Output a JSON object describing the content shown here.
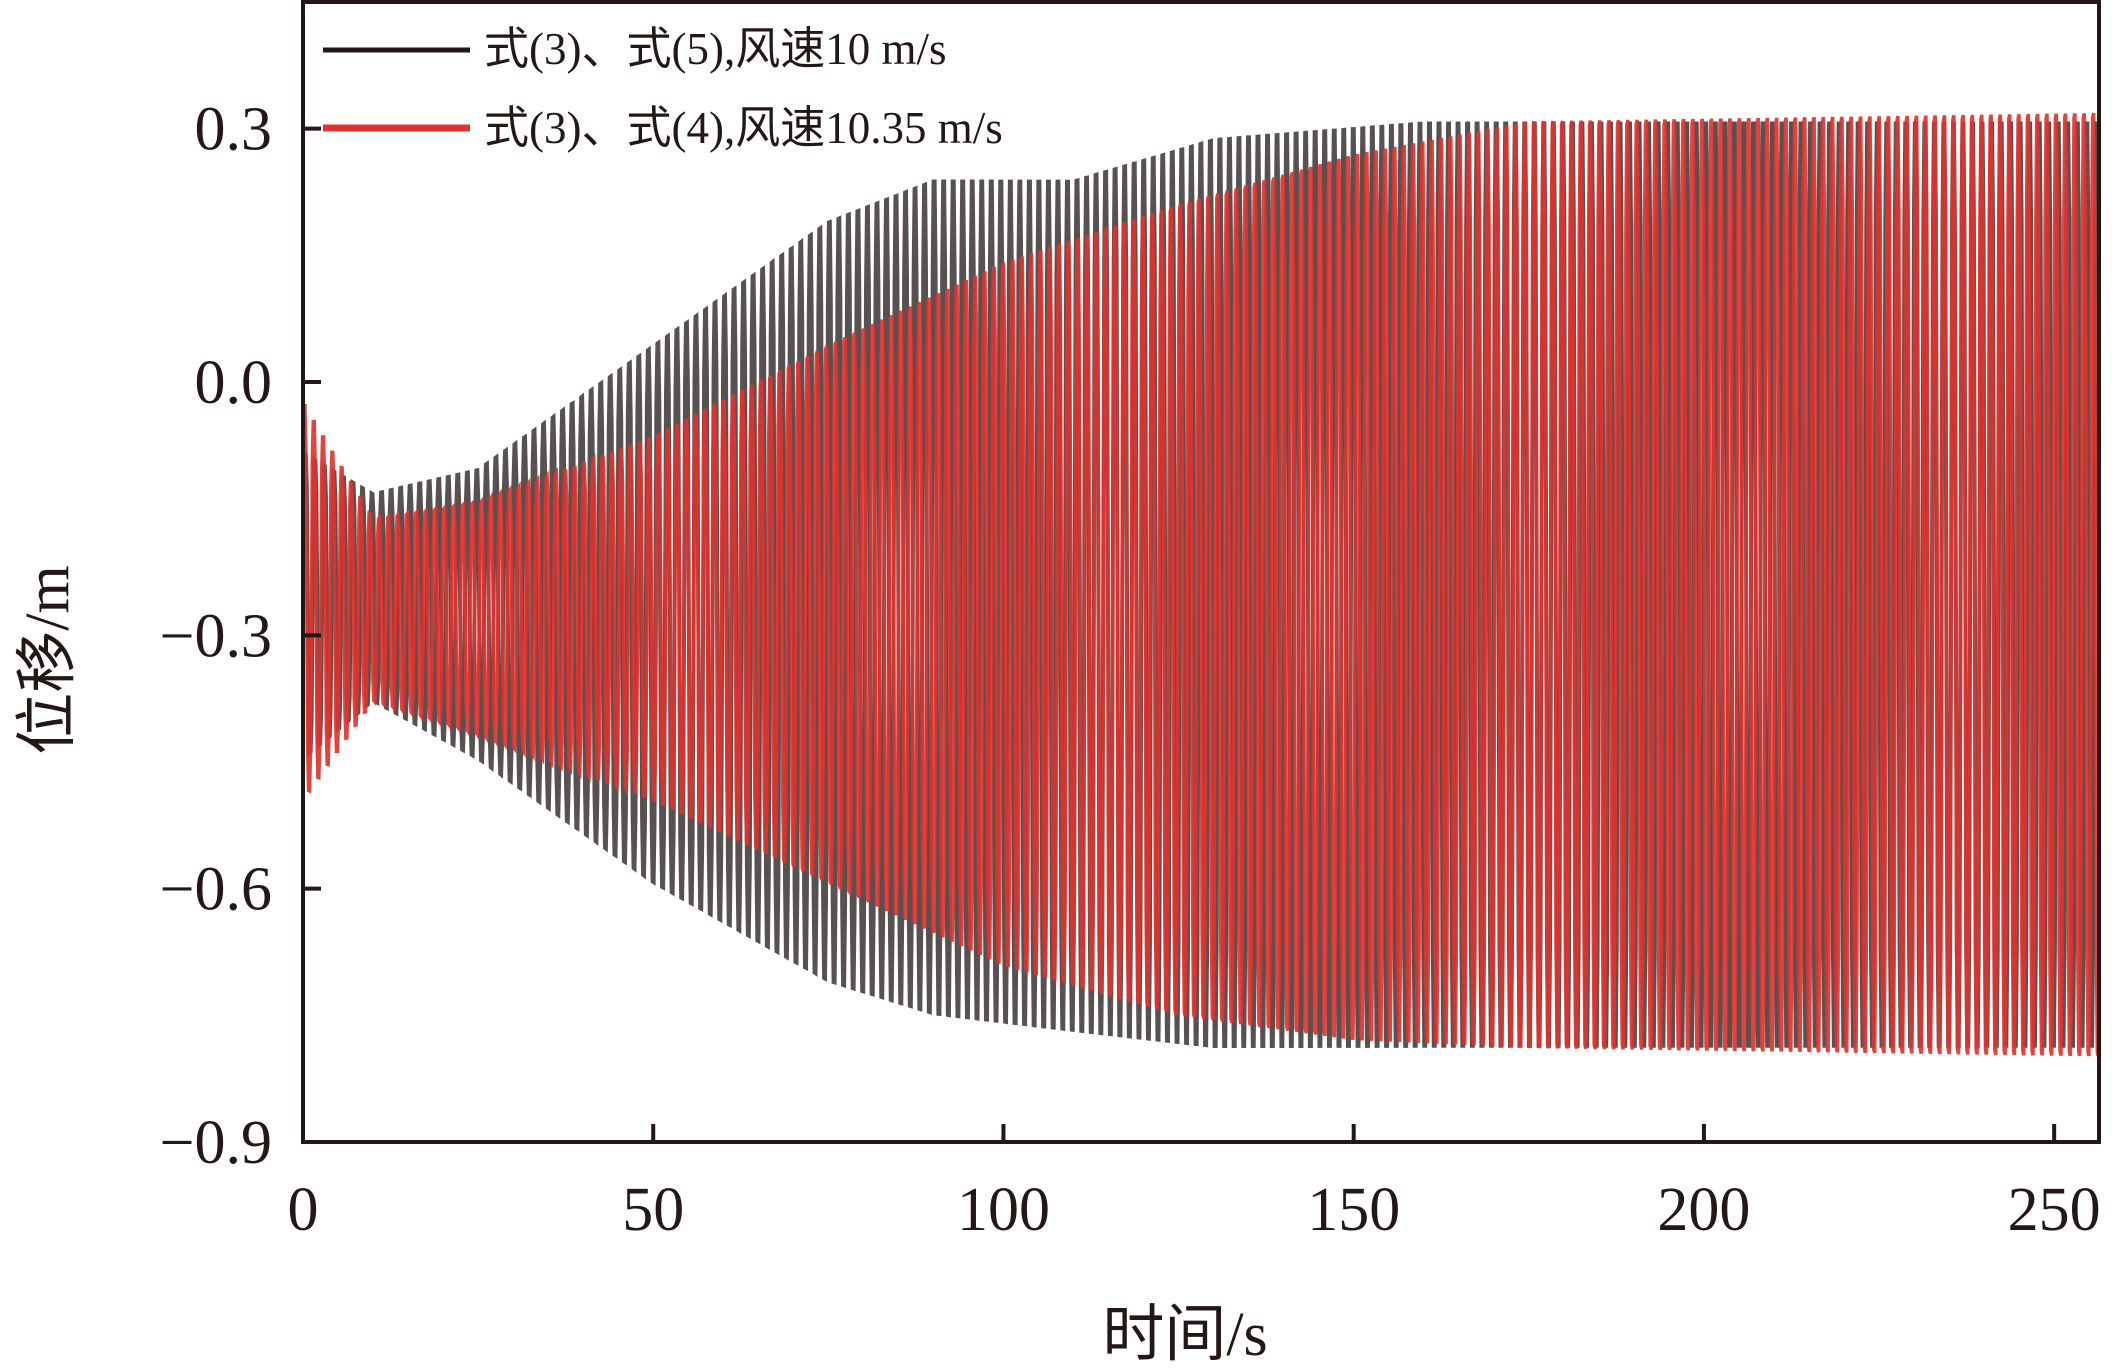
{
  "chart_data": {
    "type": "line",
    "title": "",
    "xlabel": "时间/s",
    "ylabel": "位移/m",
    "xlim": [
      0,
      256.4
    ],
    "ylim": [
      -0.9,
      0.45
    ],
    "xticks": [
      0,
      50,
      100,
      150,
      200,
      250
    ],
    "xtick_labels": [
      "0",
      "50",
      "100",
      "150",
      "200",
      "250"
    ],
    "yticks": [
      0.3,
      0.0,
      -0.3,
      -0.6,
      -0.9
    ],
    "ytick_labels": [
      "0.3",
      "0.0",
      "−0.3",
      "−0.6",
      "−0.9"
    ],
    "grid": false,
    "legend_position": "top-left",
    "series": [
      {
        "name": "式(3)、式(5),风速10 m/s",
        "color": "#3a3333",
        "oscillation_period_s": 1.36,
        "envelope_t": [
          0,
          10,
          25,
          50,
          75,
          90,
          110,
          130,
          160,
          256
        ],
        "envelope_upper": [
          -0.08,
          -0.13,
          -0.1,
          0.05,
          0.2,
          0.25,
          0.25,
          0.3,
          0.32,
          0.32
        ],
        "envelope_lower": [
          -0.45,
          -0.38,
          -0.45,
          -0.6,
          -0.72,
          -0.76,
          -0.78,
          -0.8,
          -0.8,
          -0.8
        ]
      },
      {
        "name": "式(3)、式(4),风速10.35 m/s",
        "color": "#e0332f",
        "oscillation_period_s": 1.33,
        "envelope_t": [
          0,
          10,
          25,
          50,
          75,
          100,
          125,
          150,
          175,
          256
        ],
        "envelope_upper": [
          -0.02,
          -0.16,
          -0.14,
          -0.06,
          0.05,
          0.15,
          0.22,
          0.28,
          0.32,
          0.33
        ],
        "envelope_lower": [
          -0.5,
          -0.38,
          -0.42,
          -0.5,
          -0.6,
          -0.7,
          -0.76,
          -0.79,
          -0.8,
          -0.81
        ]
      }
    ]
  }
}
